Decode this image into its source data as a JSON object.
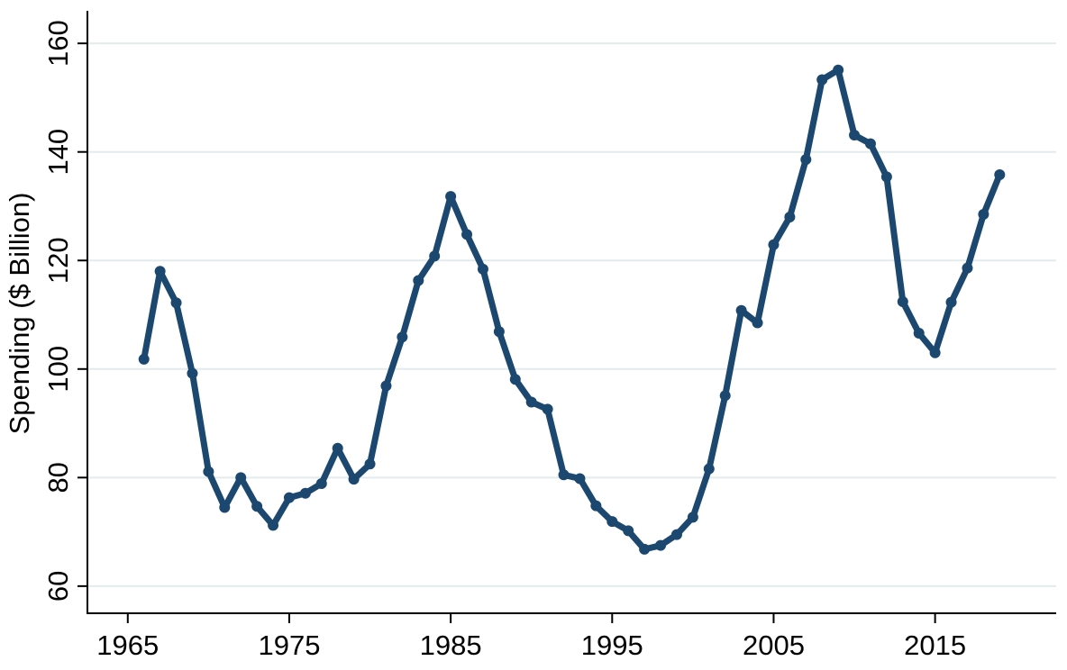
{
  "chart_data": {
    "type": "line",
    "title": "",
    "xlabel": "",
    "ylabel": "Spending ($ Billion)",
    "xlim": [
      1962.5,
      2022.5
    ],
    "ylim": [
      55,
      166
    ],
    "xticks": [
      1965,
      1975,
      1985,
      1995,
      2005,
      2015
    ],
    "yticks": [
      60,
      80,
      100,
      120,
      140,
      160
    ],
    "grid": "horizontal",
    "legend": "none",
    "colors": {
      "series": "#1c4870",
      "grid": "#e3ecec",
      "axis": "#000000"
    },
    "series": [
      {
        "x": [
          1966,
          1967,
          1968,
          1969,
          1970,
          1971,
          1972,
          1973,
          1974,
          1975,
          1976,
          1977,
          1978,
          1979,
          1980,
          1981,
          1982,
          1983,
          1984,
          1985,
          1986,
          1987,
          1988,
          1989,
          1990,
          1991,
          1992,
          1993,
          1994,
          1995,
          1996,
          1997,
          1998,
          1999,
          2000,
          2001,
          2002,
          2003,
          2004,
          2005,
          2006,
          2007,
          2008,
          2009,
          2010,
          2011,
          2012,
          2013,
          2014,
          2015,
          2016,
          2017,
          2018,
          2019
        ],
        "values": [
          101.8,
          118,
          112.2,
          99.2,
          81.1,
          74.5,
          80,
          74.7,
          71.2,
          76.3,
          77.1,
          78.9,
          85.4,
          79.7,
          82.5,
          96.9,
          105.9,
          116.3,
          120.8,
          131.8,
          124.8,
          118.4,
          106.9,
          98.1,
          93.9,
          92.6,
          80.5,
          79.8,
          74.8,
          71.9,
          70.2,
          66.8,
          67.5,
          69.5,
          72.7,
          81.6,
          95.1,
          110.8,
          108.5,
          122.9,
          128,
          138.6,
          153.3,
          155.1,
          143.1,
          141.5,
          135.4,
          112.4,
          106.6,
          103,
          112.3,
          118.6,
          128.5,
          135.8
        ]
      }
    ]
  }
}
